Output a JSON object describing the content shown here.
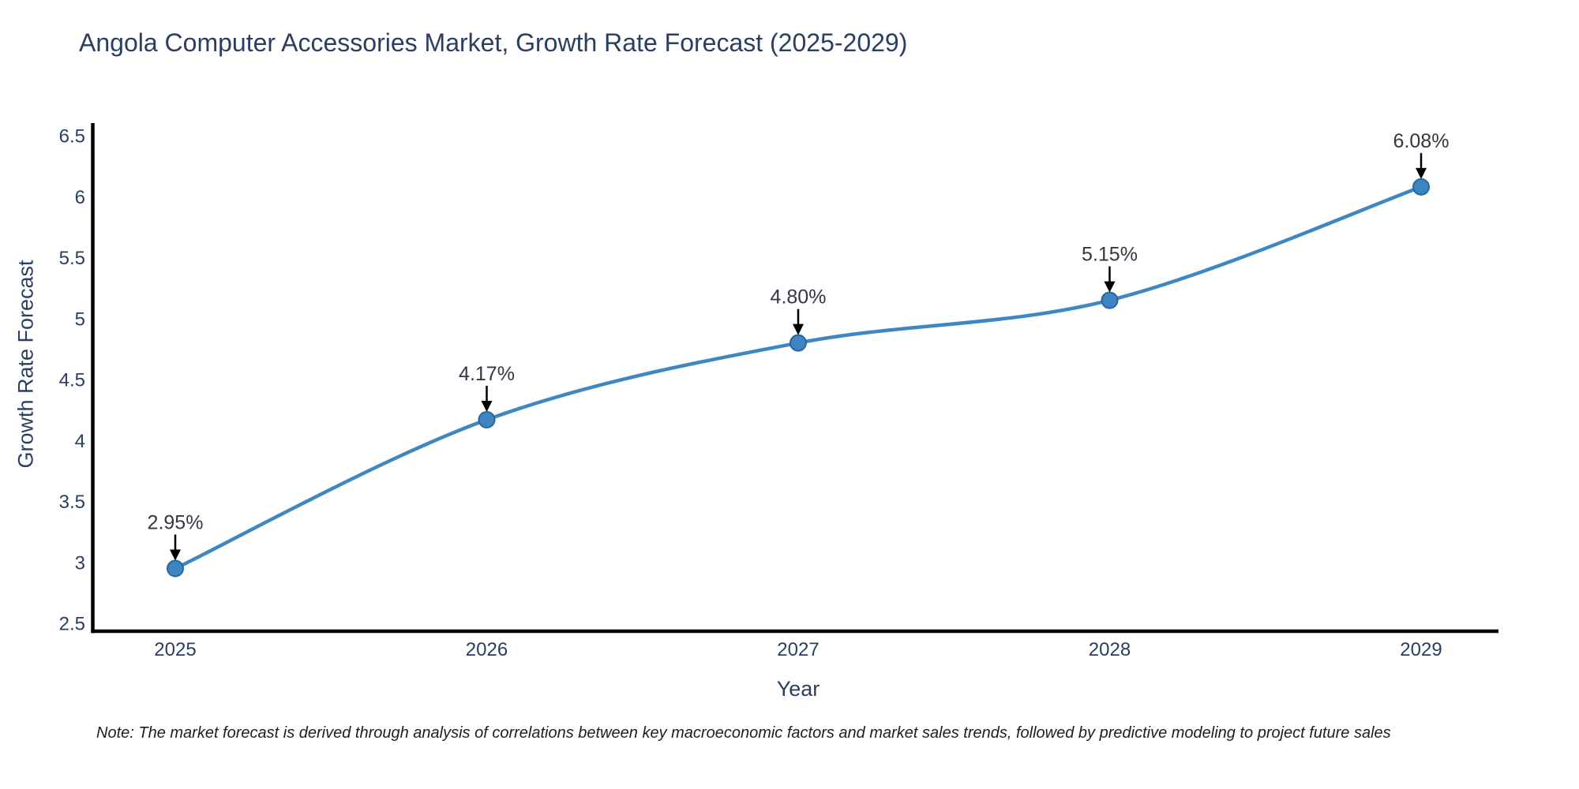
{
  "note": "Note: The market forecast is derived through analysis of correlations between key macroeconomic factors and market sales trends, followed by predictive modeling to project future sales",
  "chart_data": {
    "type": "line",
    "title": "Angola Computer Accessories Market, Growth Rate Forecast (2025-2029)",
    "xlabel": "Year",
    "ylabel": "Growth Rate Forecast",
    "x": [
      2025,
      2026,
      2027,
      2028,
      2029
    ],
    "series": [
      {
        "name": "Growth Rate Forecast",
        "values": [
          2.95,
          4.17,
          4.8,
          5.15,
          6.08
        ]
      }
    ],
    "point_labels": [
      "2.95%",
      "4.17%",
      "4.80%",
      "5.15%",
      "6.08%"
    ],
    "ylim": [
      2.5,
      6.5
    ],
    "ytick_step": 0.5,
    "line_shape": "spline",
    "grid": false,
    "legend_position": "none",
    "colors": {
      "line": "#4187bf",
      "marker_fill": "#3d84c2",
      "marker_edge": "#2a669c",
      "axis": "#000000",
      "tick_text": "#2a3f5f",
      "annotation_text": "#333740",
      "arrow": "#000000",
      "background": "#ffffff"
    }
  }
}
